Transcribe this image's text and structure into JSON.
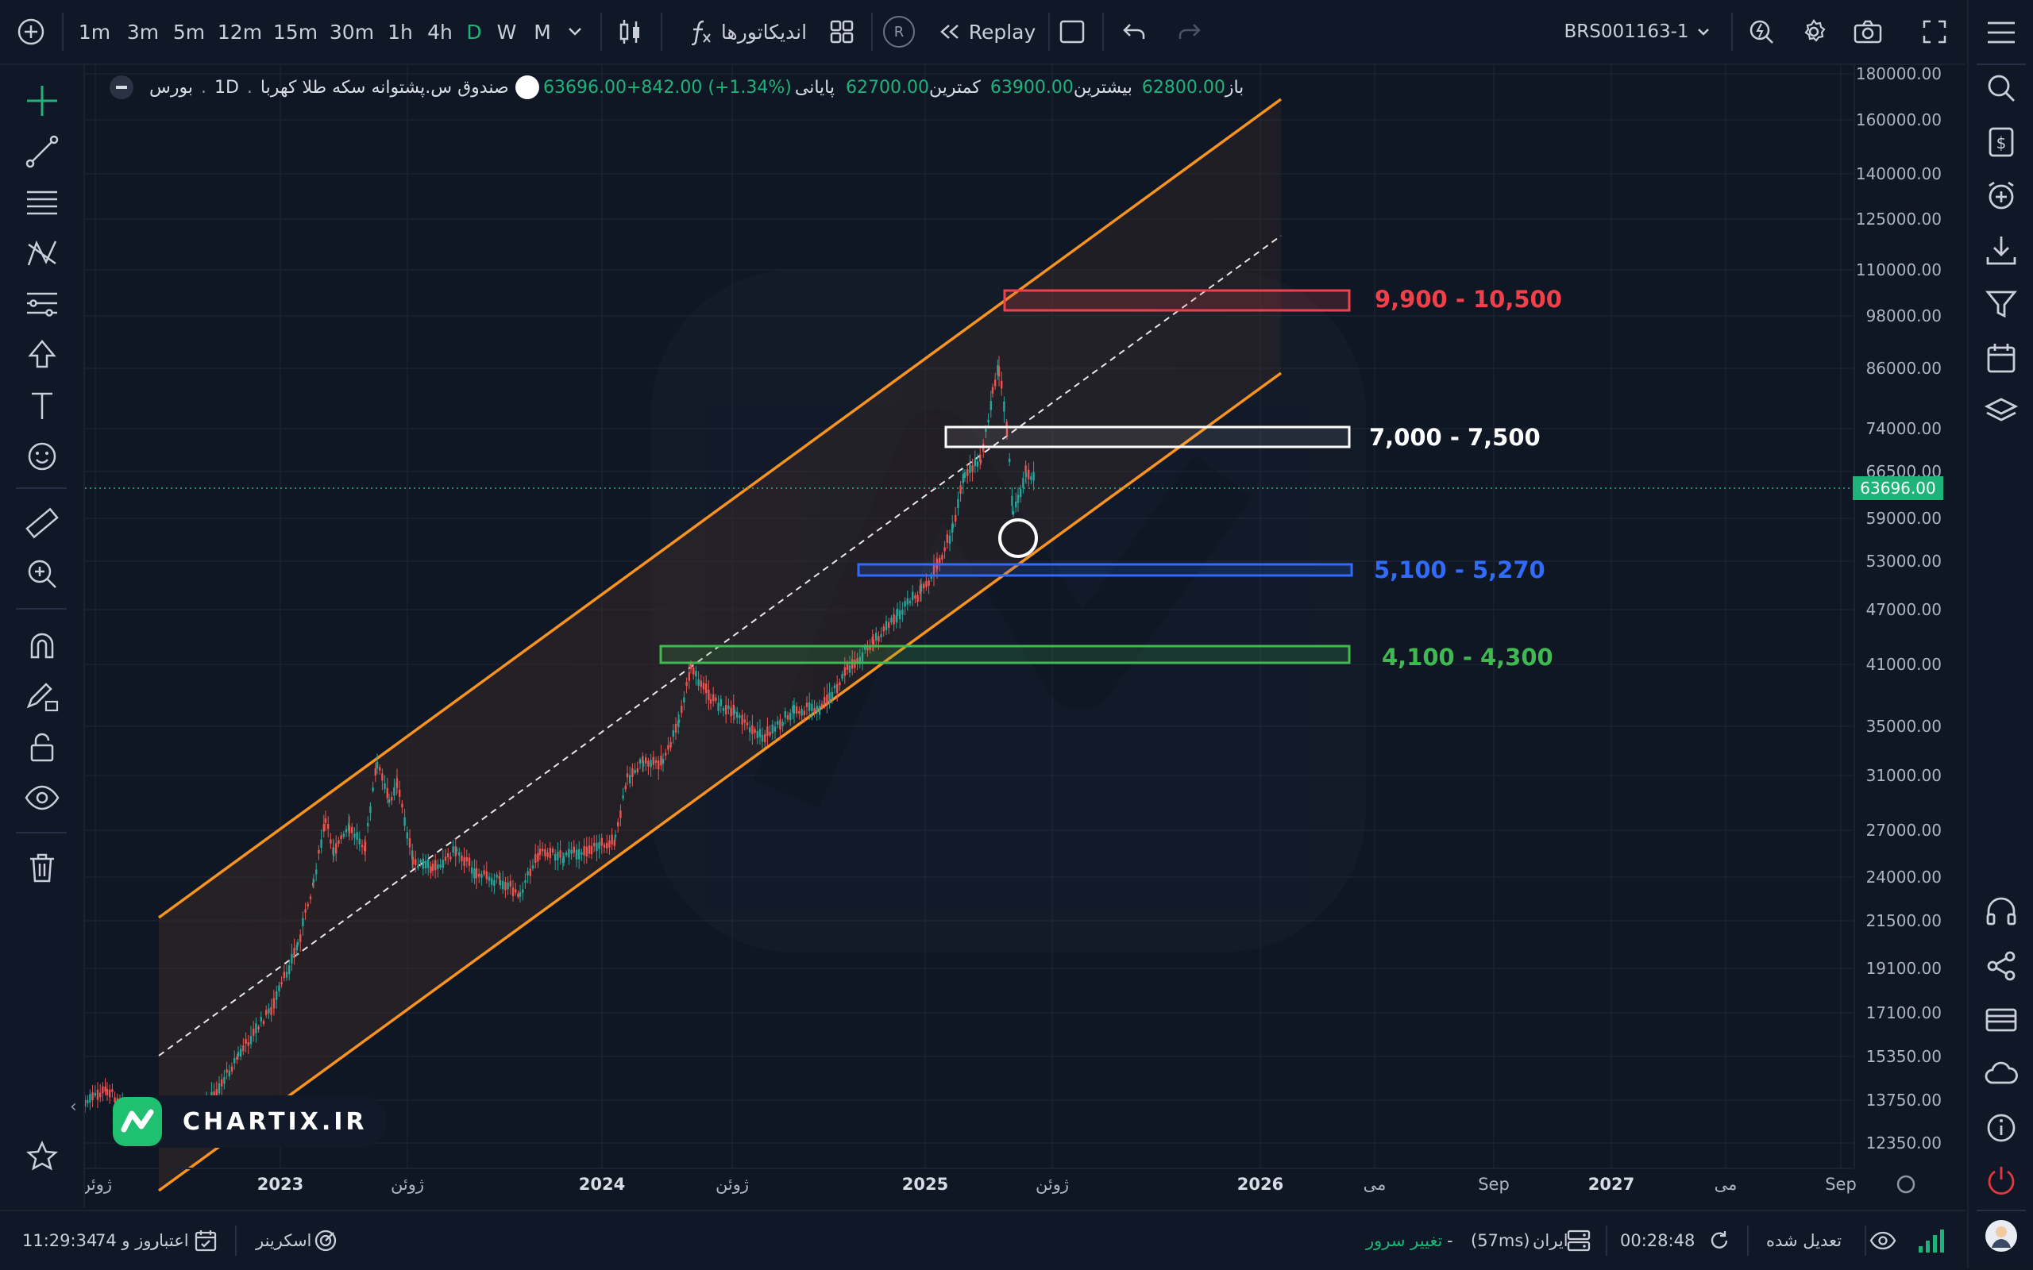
{
  "topbar": {
    "intervals": [
      "1m",
      "3m",
      "5m",
      "12m",
      "15m",
      "30m",
      "1h",
      "4h",
      "D",
      "W",
      "M"
    ],
    "active_interval": "D",
    "indicators_label": "اندیکاتورها",
    "replay_label": "Replay",
    "replay_badge": "R",
    "symbol": "BRS001163-1"
  },
  "legend": {
    "name": "صندوق س.پشتوانه سکه طلا کهربا",
    "interval": "1D",
    "exchange": "بورس",
    "open_label": "باز",
    "open": "62800.00",
    "high_label": "بیشترین",
    "high": "63900.00",
    "low_label": "کمترین",
    "low": "62700.00",
    "close_label": "پایانی",
    "close": "63696.00",
    "change": "+842.00 (+1.34%)"
  },
  "price_axis": {
    "ticks": [
      "180000.00",
      "160000.00",
      "140000.00",
      "125000.00",
      "110000.00",
      "98000.00",
      "86000.00",
      "74000.00",
      "66500.00",
      "59000.00",
      "53000.00",
      "47000.00",
      "41000.00",
      "35000.00",
      "31000.00",
      "27000.00",
      "24000.00",
      "21500.00",
      "19100.00",
      "17100.00",
      "15350.00",
      "13750.00",
      "12350.00"
    ],
    "current_price": "63696.00",
    "current_color": "#1fb37a"
  },
  "time_axis": {
    "labels": [
      "ژوئن",
      "2023",
      "ژوئن",
      "2024",
      "ژوئن",
      "2025",
      "ژوئن",
      "2026",
      "می",
      "Sep",
      "2027",
      "می",
      "Sep"
    ]
  },
  "zones": [
    {
      "label": "9,900 - 10,500",
      "color": "#f0414b"
    },
    {
      "label": "7,000 - 7,500",
      "color": "#ffffff"
    },
    {
      "label": "5,100 - 5,270",
      "color": "#2f6bff"
    },
    {
      "label": "4,100 - 4,300",
      "color": "#3fb950"
    }
  ],
  "channel_color": "#f7931e",
  "watermark": {
    "text": "CHARTIX.IR",
    "brand_color": "#1fc070"
  },
  "bottombar": {
    "clock": "11:29:34",
    "credit_label": "اعتبار",
    "credit_value": "74 روز و",
    "screener_label": "اسکرینر",
    "change_server_label": "تغییر سرور",
    "server_label": "ایران",
    "ping": "(57ms)",
    "timer": "00:28:48",
    "adjusted_label": "تعدیل شده"
  },
  "icons": {
    "left": [
      "crosshair-icon",
      "trendline-icon",
      "horizontal-lines-icon",
      "pattern-icon",
      "fib-icon",
      "arrow-up-icon",
      "text-icon",
      "emoji-icon",
      "ruler-icon",
      "zoom-icon",
      "magnet-icon",
      "pencil-lock-icon",
      "lock-icon",
      "eye-icon",
      "trash-icon",
      "star-icon"
    ],
    "right": [
      "menu-icon",
      "search-icon",
      "dollar-icon",
      "add-circle-icon",
      "download-icon",
      "filter-icon",
      "calendar-icon",
      "layers-icon",
      "headset-icon",
      "share-icon",
      "card-icon",
      "cloud-icon",
      "info-icon",
      "power-icon",
      "user-avatar"
    ]
  }
}
